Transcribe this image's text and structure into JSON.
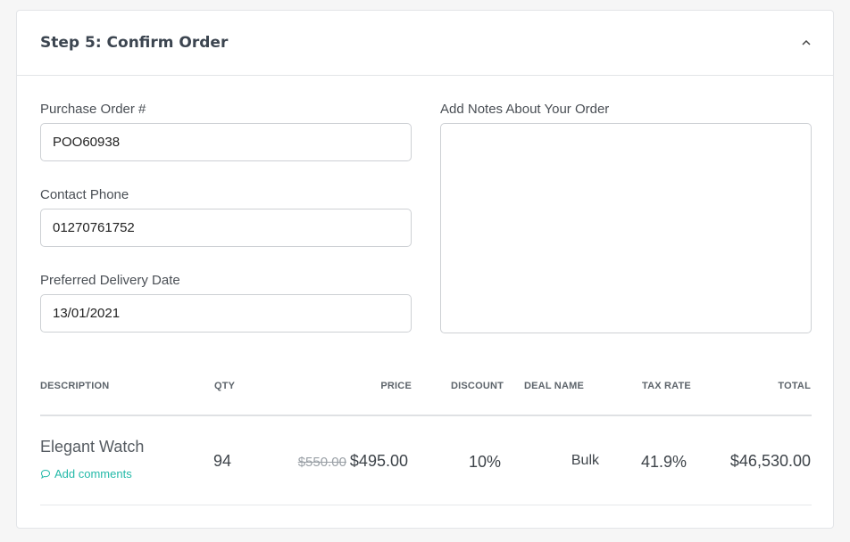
{
  "header": {
    "title": "Step 5: Confirm Order",
    "collapse_icon": "chevron-up-icon"
  },
  "form": {
    "purchase_order": {
      "label": "Purchase Order #",
      "value": "POO60938"
    },
    "contact_phone": {
      "label": "Contact Phone",
      "value": "01270761752"
    },
    "delivery_date": {
      "label": "Preferred Delivery Date",
      "value": "13/01/2021"
    },
    "notes": {
      "label": "Add Notes About Your Order",
      "value": ""
    }
  },
  "table": {
    "columns": [
      "DESCRIPTION",
      "QTY",
      "PRICE",
      "DISCOUNT",
      "DEAL NAME",
      "TAX RATE",
      "TOTAL"
    ],
    "rows": [
      {
        "description": "Elegant Watch",
        "comment_link": "Add comments",
        "qty": "94",
        "original_price": "$550.00",
        "price": "$495.00",
        "discount": "10%",
        "deal_name": "Bulk",
        "tax_rate": "41.9%",
        "total": "$46,530.00"
      }
    ]
  },
  "colors": {
    "accent": "#23b9a8"
  }
}
